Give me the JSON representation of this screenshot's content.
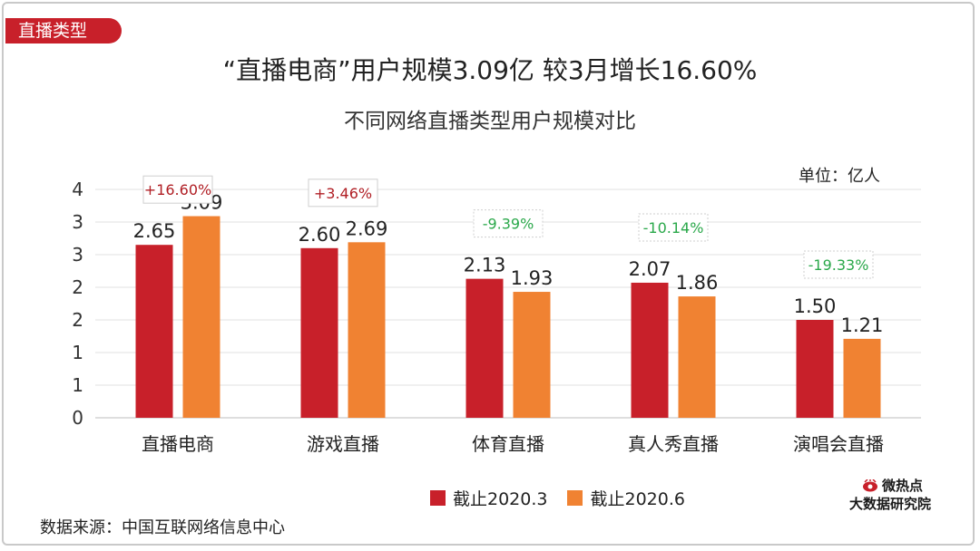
{
  "header": {
    "tag": "直播类型",
    "title": "“直播电商”用户规模3.09亿 较3月增长16.60%",
    "subtitle": "不同网络直播类型用户规模对比",
    "unit": "单位：亿人"
  },
  "footer": {
    "source": "数据来源：中国互联网络信息中心",
    "brand_line1": "微热点",
    "brand_line2": "大数据研究院"
  },
  "colors": {
    "series1": "#c8202a",
    "series2": "#f08232",
    "positive_change": "#b01e24",
    "negative_change": "#2aa84a"
  },
  "chart_data": {
    "type": "bar",
    "categories": [
      "直播电商",
      "游戏直播",
      "体育直播",
      "真人秀直播",
      "演唱会直播"
    ],
    "series": [
      {
        "name": "截止2020.3",
        "values": [
          2.65,
          2.6,
          2.13,
          2.07,
          1.5
        ],
        "labels": [
          "2.65",
          "2.60",
          "2.13",
          "2.07",
          "1.50"
        ]
      },
      {
        "name": "截止2020.6",
        "values": [
          3.09,
          2.69,
          1.93,
          1.86,
          1.21
        ],
        "labels": [
          "3.09",
          "2.69",
          "1.93",
          "1.86",
          "1.21"
        ]
      }
    ],
    "changes": [
      "+16.60%",
      "+3.46%",
      "-9.39%",
      "-10.14%",
      "-19.33%"
    ],
    "yticks": [
      "0",
      "1",
      "1",
      "2",
      "2",
      "3",
      "3",
      "4"
    ],
    "ylim": [
      0,
      3.5
    ],
    "grid": true,
    "legend_position": "bottom"
  }
}
